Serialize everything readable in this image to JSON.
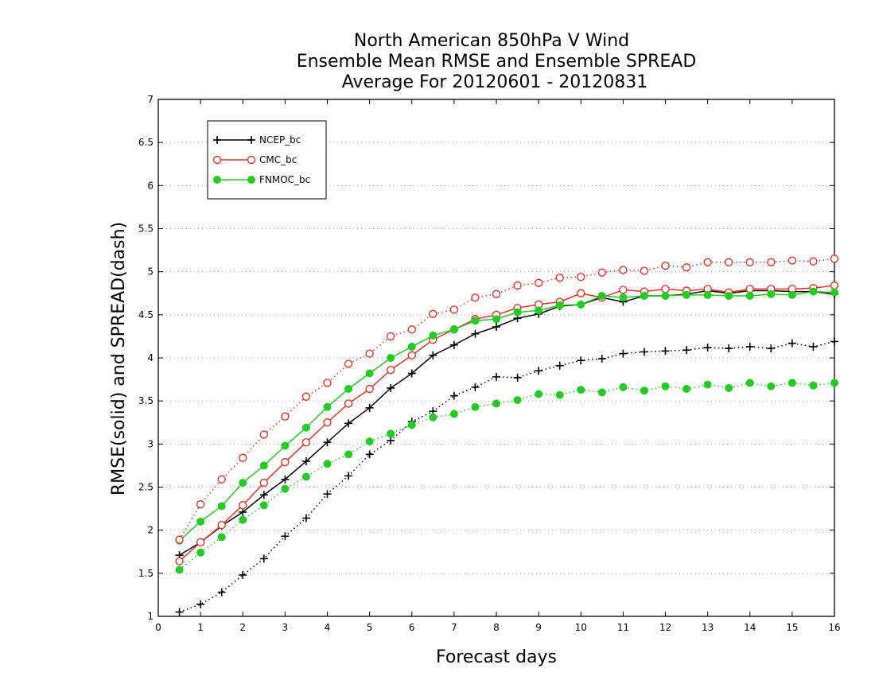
{
  "chart_data": {
    "type": "line",
    "title": [
      "North American 850hPa V Wind",
      "Ensemble Mean RMSE and Ensemble SPREAD",
      "Average For 20120601 - 20120831"
    ],
    "xlabel": "Forecast days",
    "ylabel": "RMSE(solid) and SPREAD(dash)",
    "xlim": [
      0,
      16
    ],
    "ylim": [
      1,
      7
    ],
    "x_ticks": [
      "0",
      "1",
      "2",
      "3",
      "4",
      "5",
      "6",
      "7",
      "8",
      "9",
      "10",
      "11",
      "12",
      "13",
      "14",
      "15",
      "16"
    ],
    "y_ticks": [
      "1",
      "1.5",
      "2",
      "2.5",
      "3",
      "3.5",
      "4",
      "4.5",
      "5",
      "5.5",
      "6",
      "6.5",
      "7"
    ],
    "grid": true,
    "legend_position": "top-left",
    "x": [
      0.5,
      1,
      1.5,
      2,
      2.5,
      3,
      3.5,
      4,
      4.5,
      5,
      5.5,
      6,
      6.5,
      7,
      7.5,
      8,
      8.5,
      9,
      9.5,
      10,
      10.5,
      11,
      11.5,
      12,
      12.5,
      13,
      13.5,
      14,
      14.5,
      15,
      15.5,
      16
    ],
    "series": [
      {
        "name": "NCEP_bc",
        "style": "solid",
        "color": "#000000",
        "marker": "plus",
        "values": [
          1.71,
          1.86,
          2.05,
          2.21,
          2.41,
          2.59,
          2.8,
          3.02,
          3.24,
          3.42,
          3.65,
          3.82,
          4.03,
          4.15,
          4.28,
          4.36,
          4.46,
          4.51,
          4.6,
          4.62,
          4.7,
          4.65,
          4.72,
          4.72,
          4.74,
          4.78,
          4.75,
          4.78,
          4.78,
          4.77,
          4.77,
          4.74
        ]
      },
      {
        "name": "CMC_bc",
        "style": "solid",
        "color": "#e8332a",
        "marker": "open-circle",
        "values": [
          1.64,
          1.86,
          2.06,
          2.29,
          2.55,
          2.79,
          3.02,
          3.25,
          3.47,
          3.64,
          3.86,
          4.03,
          4.21,
          4.33,
          4.45,
          4.5,
          4.58,
          4.62,
          4.65,
          4.75,
          4.7,
          4.79,
          4.77,
          4.8,
          4.78,
          4.8,
          4.76,
          4.8,
          4.8,
          4.8,
          4.81,
          4.84
        ]
      },
      {
        "name": "FNMOC_bc",
        "style": "solid",
        "color": "#22cc22",
        "marker": "filled-circle",
        "values": [
          1.88,
          2.1,
          2.28,
          2.55,
          2.75,
          2.98,
          3.19,
          3.43,
          3.64,
          3.82,
          4.0,
          4.13,
          4.26,
          4.33,
          4.43,
          4.45,
          4.53,
          4.55,
          4.61,
          4.62,
          4.72,
          4.7,
          4.72,
          4.72,
          4.73,
          4.73,
          4.72,
          4.72,
          4.74,
          4.73,
          4.77,
          4.76
        ]
      },
      {
        "name": "",
        "style": "dotted",
        "color": "#000000",
        "marker": "plus",
        "values": [
          1.05,
          1.14,
          1.28,
          1.48,
          1.67,
          1.93,
          2.14,
          2.42,
          2.63,
          2.88,
          3.04,
          3.26,
          3.38,
          3.56,
          3.66,
          3.78,
          3.77,
          3.85,
          3.91,
          3.97,
          3.99,
          4.05,
          4.07,
          4.08,
          4.09,
          4.12,
          4.11,
          4.13,
          4.11,
          4.17,
          4.13,
          4.19
        ]
      },
      {
        "name": "",
        "style": "dotted",
        "color": "#e8332a",
        "marker": "open-circle",
        "values": [
          1.89,
          2.3,
          2.59,
          2.84,
          3.11,
          3.32,
          3.55,
          3.71,
          3.93,
          4.05,
          4.25,
          4.33,
          4.51,
          4.56,
          4.7,
          4.74,
          4.84,
          4.87,
          4.93,
          4.94,
          4.99,
          5.02,
          5.01,
          5.07,
          5.05,
          5.11,
          5.11,
          5.11,
          5.11,
          5.13,
          5.12,
          5.15
        ]
      },
      {
        "name": "",
        "style": "dotted",
        "color": "#22cc22",
        "marker": "filled-circle",
        "values": [
          1.54,
          1.74,
          1.92,
          2.12,
          2.29,
          2.48,
          2.62,
          2.77,
          2.88,
          3.03,
          3.12,
          3.22,
          3.31,
          3.35,
          3.43,
          3.47,
          3.51,
          3.58,
          3.57,
          3.63,
          3.6,
          3.66,
          3.62,
          3.67,
          3.64,
          3.69,
          3.65,
          3.71,
          3.67,
          3.71,
          3.68,
          3.71
        ]
      }
    ]
  }
}
